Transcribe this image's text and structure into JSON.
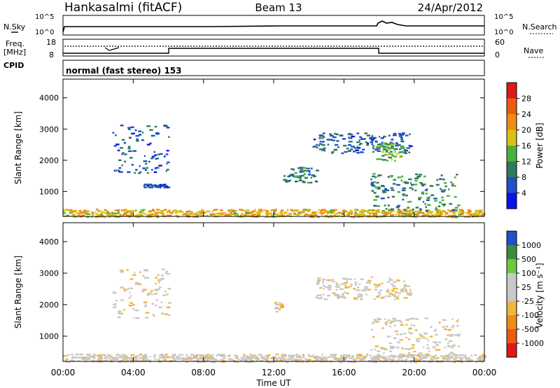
{
  "header": {
    "station": "Hankasalmi (fitACF)",
    "beam": "Beam 13",
    "date": "24/Apr/2012"
  },
  "status_panels": {
    "nsky_label": "N.Sky",
    "nsky_ticks": [
      "10^5",
      "10^0"
    ],
    "nsearch_label": "N.Search",
    "nsearch_ticks": [
      "10^5",
      "10^0"
    ],
    "freq_label": "Freq.",
    "freq_unit": "[MHz]",
    "freq_ticks": [
      "18",
      "8"
    ],
    "nave_label": "Nave",
    "nave_ticks": [
      "60",
      "0"
    ],
    "cpid_label": "CPID",
    "cpid_value": "normal (fast stereo) 153"
  },
  "chart_data": [
    {
      "type": "heatmap",
      "panel": "power",
      "ylabel": "Slant Range [km]",
      "yticks": [
        "1000",
        "2000",
        "3000",
        "4000"
      ],
      "ylim": [
        200,
        4600
      ],
      "xlim": [
        0,
        24
      ],
      "colorbar_label": "Power [dB]",
      "colorbar_ticks": [
        "28",
        "24",
        "20",
        "16",
        "12",
        "8",
        "4"
      ],
      "colorbar_range": [
        0,
        30
      ],
      "colors": [
        "#0a14e6",
        "#1e50c8",
        "#2f7a5c",
        "#48b23c",
        "#d8c20e",
        "#ee8c14",
        "#ec5a12",
        "#e01818"
      ],
      "echo_regions": [
        {
          "t0": 0.0,
          "t1": 24.0,
          "r0": 200,
          "r1": 450,
          "value": 18
        },
        {
          "t0": 2.8,
          "t1": 6.0,
          "r0": 1600,
          "r1": 3150,
          "value": 6
        },
        {
          "t0": 4.5,
          "t1": 6.0,
          "r0": 1150,
          "r1": 1250,
          "value": 6
        },
        {
          "t0": 14.2,
          "t1": 19.8,
          "r0": 2250,
          "r1": 2900,
          "value": 7
        },
        {
          "t0": 17.8,
          "t1": 19.3,
          "r0": 2000,
          "r1": 2600,
          "value": 14
        },
        {
          "t0": 17.5,
          "t1": 22.5,
          "r0": 400,
          "r1": 1600,
          "value": 10
        },
        {
          "t0": 12.5,
          "t1": 14.5,
          "r0": 1300,
          "r1": 1800,
          "value": 9
        }
      ]
    },
    {
      "type": "heatmap",
      "panel": "velocity",
      "ylabel": "Slant Range [km]",
      "yticks": [
        "1000",
        "2000",
        "3000",
        "4000"
      ],
      "ylim": [
        200,
        4600
      ],
      "xlim": [
        0,
        24
      ],
      "colorbar_label": "Velocity [m s⁻¹]",
      "colorbar_ticks": [
        "1000",
        "500",
        "100",
        "25",
        "-25",
        "-100",
        "-500",
        "-1000"
      ],
      "colorbar_range": [
        -1200,
        1200
      ],
      "colors": [
        "#e01818",
        "#ec5a12",
        "#ee8c14",
        "#f0b640",
        "#c8c8c8",
        "#c8c8c8",
        "#6cc83c",
        "#3c8c3c",
        "#2050c8"
      ],
      "echo_regions": [
        {
          "t0": 0.0,
          "t1": 24.0,
          "r0": 200,
          "r1": 450,
          "value": 50
        },
        {
          "t0": 2.8,
          "t1": 6.0,
          "r0": 1600,
          "r1": 3150,
          "value": 0
        },
        {
          "t0": 14.2,
          "t1": 19.8,
          "r0": 2200,
          "r1": 2900,
          "value": 0
        },
        {
          "t0": 17.5,
          "t1": 22.5,
          "r0": 400,
          "r1": 1600,
          "value": 10
        },
        {
          "t0": 12.0,
          "t1": 12.5,
          "r0": 1800,
          "r1": 2100,
          "value": -200
        }
      ]
    }
  ],
  "xaxis": {
    "label": "Time UT",
    "ticks": [
      "00:00",
      "04:00",
      "08:00",
      "12:00",
      "16:00",
      "20:00",
      "00:00"
    ]
  }
}
